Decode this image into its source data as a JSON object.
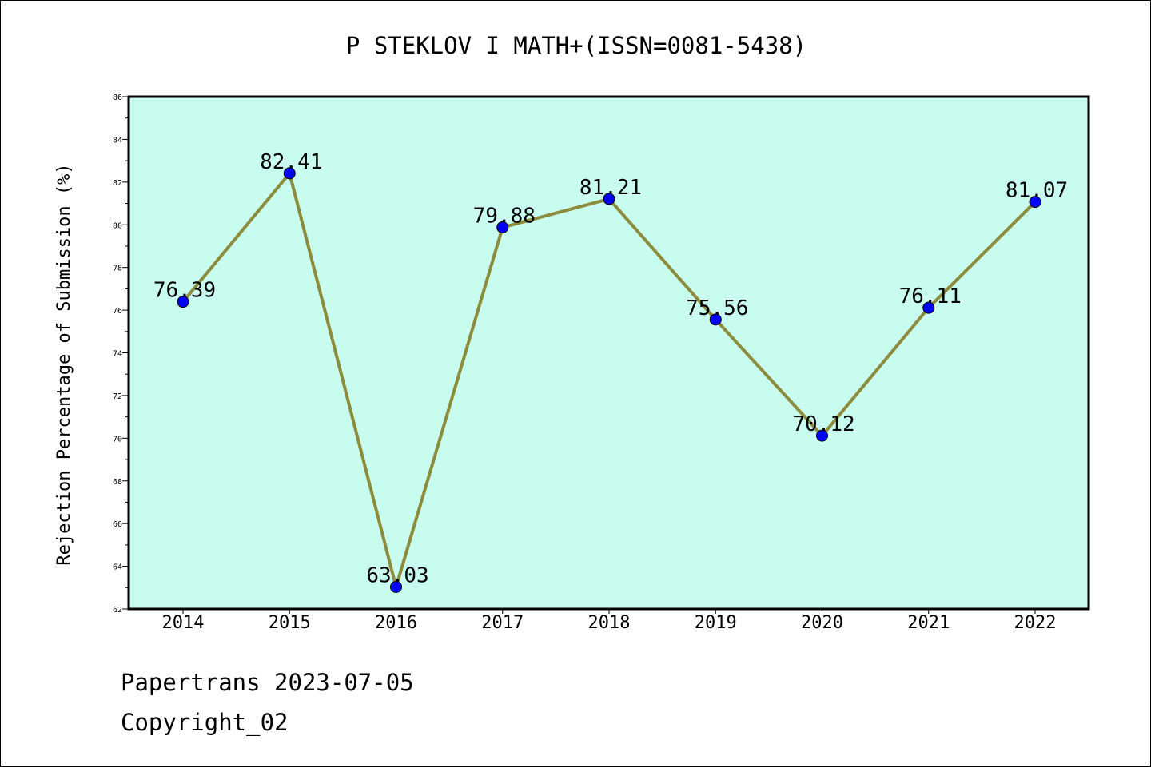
{
  "chart_data": {
    "type": "line",
    "title": "P STEKLOV I MATH+(ISSN=0081-5438)",
    "xlabel": "",
    "ylabel": "Rejection Percentage of Submission (%)",
    "categories": [
      "2014",
      "2015",
      "2016",
      "2017",
      "2018",
      "2019",
      "2020",
      "2021",
      "2022"
    ],
    "values": [
      76.39,
      82.41,
      63.03,
      79.88,
      81.21,
      75.56,
      70.12,
      76.11,
      81.07
    ],
    "data_labels": [
      "76.39",
      "82.41",
      "63.03",
      "79.88",
      "81.21",
      "75.56",
      "70.12",
      "76.11",
      "81.07"
    ],
    "ylim": [
      62,
      86
    ],
    "yticks": [
      62,
      64,
      66,
      68,
      70,
      72,
      74,
      76,
      78,
      80,
      82,
      84,
      86
    ],
    "grid": false,
    "legend": "none",
    "colors": {
      "plot_background": "#c8fcee",
      "line": "#8c8c3c",
      "marker": "#0000ff",
      "axes": "#000000"
    }
  },
  "footer": {
    "line1": "Papertrans 2023-07-05",
    "line2": "Copyright_02"
  }
}
